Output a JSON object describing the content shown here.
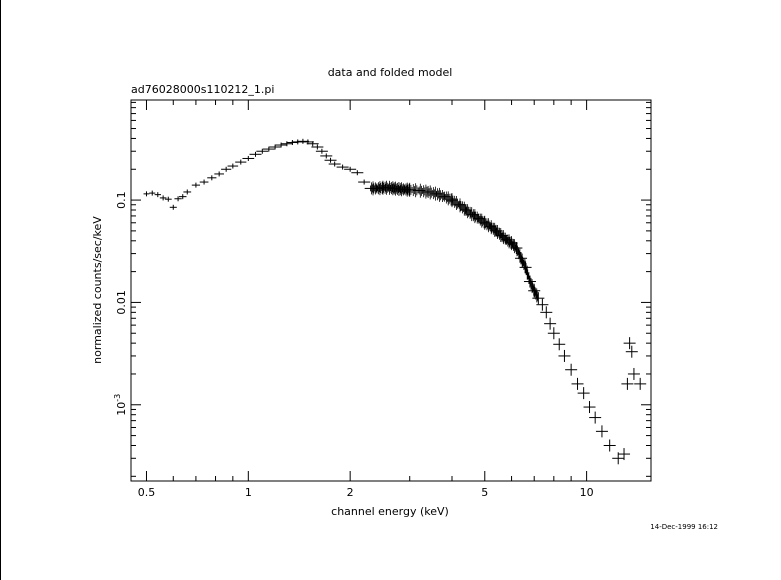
{
  "chart_data": {
    "type": "scatter",
    "title": "data and folded model",
    "subtitle": "ad76028000s110212_1.pi",
    "xlabel": "channel energy (keV)",
    "ylabel": "normalized counts/sec/keV",
    "xscale": "log",
    "yscale": "log",
    "xlim": [
      0.45,
      15.5
    ],
    "ylim": [
      0.00018,
      0.95
    ],
    "xticks": [
      {
        "v": 0.5,
        "label": "0.5"
      },
      {
        "v": 1,
        "label": "1"
      },
      {
        "v": 2,
        "label": "2"
      },
      {
        "v": 5,
        "label": "5"
      },
      {
        "v": 10,
        "label": "10"
      }
    ],
    "yticks": [
      {
        "v": 0.1,
        "label": "0.1"
      },
      {
        "v": 0.01,
        "label": "0.01"
      },
      {
        "v": 0.001,
        "label": "10",
        "sup": "-3"
      }
    ],
    "timestamp": "14-Dec-1999 16:12",
    "series": [
      {
        "values": [
          [
            0.5,
            0.115
          ],
          [
            0.52,
            0.117
          ],
          [
            0.54,
            0.113
          ],
          [
            0.56,
            0.105
          ],
          [
            0.58,
            0.102
          ],
          [
            0.6,
            0.085
          ],
          [
            0.62,
            0.103
          ],
          [
            0.64,
            0.108
          ],
          [
            0.66,
            0.12
          ],
          [
            0.7,
            0.14
          ],
          [
            0.74,
            0.15
          ],
          [
            0.78,
            0.165
          ],
          [
            0.82,
            0.18
          ],
          [
            0.86,
            0.2
          ],
          [
            0.9,
            0.215
          ],
          [
            0.95,
            0.235
          ],
          [
            1.0,
            0.255
          ],
          [
            1.05,
            0.28
          ],
          [
            1.1,
            0.3
          ],
          [
            1.15,
            0.315
          ],
          [
            1.2,
            0.33
          ],
          [
            1.25,
            0.345
          ],
          [
            1.3,
            0.355
          ],
          [
            1.35,
            0.365
          ],
          [
            1.4,
            0.37
          ],
          [
            1.45,
            0.375
          ],
          [
            1.5,
            0.37
          ],
          [
            1.55,
            0.355
          ],
          [
            1.6,
            0.33
          ],
          [
            1.65,
            0.3
          ],
          [
            1.7,
            0.27
          ],
          [
            1.75,
            0.245
          ],
          [
            1.8,
            0.225
          ],
          [
            1.9,
            0.21
          ],
          [
            2.0,
            0.2
          ],
          [
            2.1,
            0.185
          ],
          [
            2.2,
            0.15
          ],
          [
            2.3,
            0.13
          ],
          [
            2.4,
            0.13
          ],
          [
            2.5,
            0.132
          ],
          [
            2.6,
            0.132
          ],
          [
            2.7,
            0.13
          ],
          [
            2.8,
            0.128
          ],
          [
            2.9,
            0.127
          ],
          [
            3.0,
            0.126
          ],
          [
            3.2,
            0.124
          ],
          [
            3.4,
            0.12
          ],
          [
            3.6,
            0.115
          ],
          [
            3.8,
            0.108
          ],
          [
            4.0,
            0.1
          ],
          [
            4.2,
            0.09
          ],
          [
            4.4,
            0.08
          ],
          [
            4.6,
            0.072
          ],
          [
            4.8,
            0.066
          ],
          [
            5.0,
            0.06
          ],
          [
            5.2,
            0.055
          ],
          [
            5.4,
            0.05
          ],
          [
            5.6,
            0.045
          ],
          [
            5.8,
            0.041
          ],
          [
            6.0,
            0.038
          ],
          [
            6.2,
            0.034
          ],
          [
            6.4,
            0.027
          ],
          [
            6.6,
            0.022
          ],
          [
            6.8,
            0.016
          ],
          [
            7.0,
            0.013
          ],
          [
            7.2,
            0.011
          ],
          [
            7.4,
            0.0095
          ],
          [
            7.6,
            0.008
          ],
          [
            7.8,
            0.0062
          ],
          [
            8.0,
            0.005
          ],
          [
            8.3,
            0.0039
          ],
          [
            8.6,
            0.003
          ],
          [
            9.0,
            0.0022
          ],
          [
            9.4,
            0.0016
          ],
          [
            9.8,
            0.0013
          ],
          [
            10.2,
            0.00095
          ],
          [
            10.6,
            0.00075
          ],
          [
            11.1,
            0.00055
          ],
          [
            11.7,
            0.0004
          ],
          [
            12.4,
            0.0003
          ],
          [
            12.9,
            0.00033
          ],
          [
            13.2,
            0.0016
          ],
          [
            13.4,
            0.004
          ],
          [
            13.6,
            0.0033
          ],
          [
            13.8,
            0.002
          ],
          [
            14.4,
            0.0016
          ]
        ]
      }
    ]
  }
}
